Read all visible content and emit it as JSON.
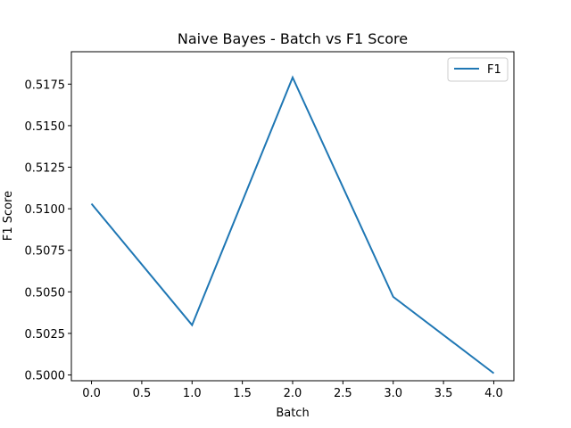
{
  "chart_data": {
    "type": "line",
    "title": "Naive Bayes - Batch vs F1 Score",
    "xlabel": "Batch",
    "ylabel": "F1 Score",
    "x": [
      0,
      1,
      2,
      3,
      4
    ],
    "series": [
      {
        "name": "F1",
        "values": [
          0.5103,
          0.503,
          0.5179,
          0.5047,
          0.5001
        ],
        "color": "#1f77b4"
      }
    ],
    "xlim": [
      -0.2,
      4.2
    ],
    "ylim": [
      0.49965,
      0.51945
    ],
    "xticks": [
      0.0,
      0.5,
      1.0,
      1.5,
      2.0,
      2.5,
      3.0,
      3.5,
      4.0
    ],
    "xtick_labels": [
      "0.0",
      "0.5",
      "1.0",
      "1.5",
      "2.0",
      "2.5",
      "3.0",
      "3.5",
      "4.0"
    ],
    "yticks": [
      0.5,
      0.5025,
      0.505,
      0.5075,
      0.51,
      0.5125,
      0.515,
      0.5175
    ],
    "ytick_labels": [
      "0.5000",
      "0.5025",
      "0.5050",
      "0.5075",
      "0.5100",
      "0.5125",
      "0.5150",
      "0.5175"
    ],
    "grid": false,
    "legend_position": "top-right"
  }
}
